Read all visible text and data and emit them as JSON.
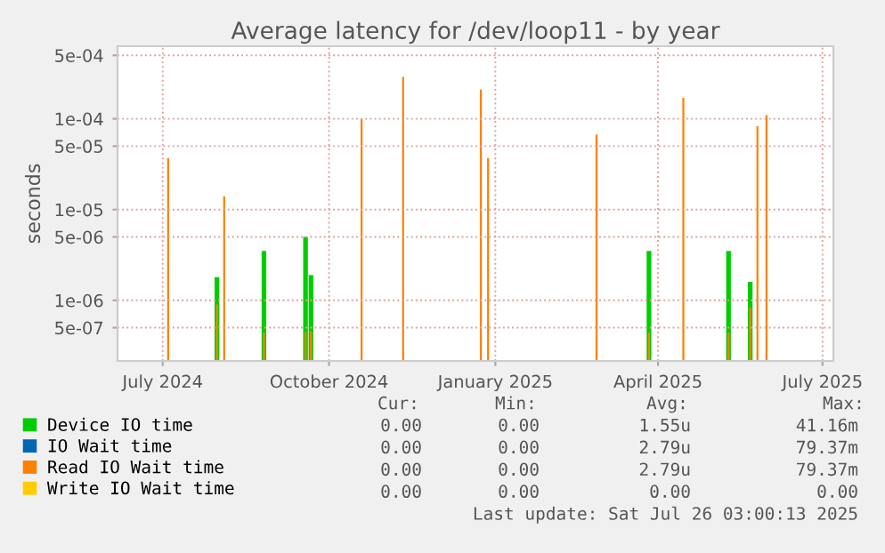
{
  "chart_data": {
    "type": "bar",
    "title": "Average latency for /dev/loop11 - by year",
    "ylabel": "seconds",
    "x": [
      "2024-07-04",
      "2024-07-31",
      "2024-08-04",
      "2024-08-26",
      "2024-09-18",
      "2024-09-21",
      "2024-10-19",
      "2024-11-11",
      "2024-12-24",
      "2024-12-28",
      "2025-02-26",
      "2025-03-27",
      "2025-04-15",
      "2025-05-10",
      "2025-05-22",
      "2025-05-26",
      "2025-05-31"
    ],
    "series": [
      {
        "name": "Device IO time",
        "color": "#00cc00",
        "values": [
          null,
          1.8e-06,
          null,
          3.5e-06,
          5e-06,
          1.9e-06,
          null,
          null,
          null,
          null,
          null,
          3.5e-06,
          null,
          3.5e-06,
          1.6e-06,
          null,
          null
        ]
      },
      {
        "name": "IO Wait time",
        "color": "#0066b3",
        "values": [
          null,
          null,
          null,
          null,
          null,
          null,
          null,
          null,
          null,
          null,
          null,
          null,
          null,
          null,
          null,
          null,
          null
        ]
      },
      {
        "name": "Read IO Wait time",
        "color": "#ff8000",
        "values": [
          3.7e-05,
          9e-07,
          1.4e-05,
          4.4e-07,
          4.5e-07,
          4.6e-07,
          0.0001,
          0.00029,
          0.00021,
          3.7e-05,
          6.7e-05,
          4.4e-07,
          0.00017,
          4.4e-07,
          8.4e-07,
          8.3e-05,
          0.00011
        ]
      },
      {
        "name": "Write IO Wait time",
        "color": "#ffcc00",
        "values": [
          null,
          null,
          null,
          null,
          null,
          null,
          null,
          null,
          null,
          null,
          null,
          null,
          null,
          null,
          null,
          null,
          null
        ]
      }
    ],
    "log": "y",
    "ylim": [
      2.15e-07,
      0.00063
    ],
    "yticks": [
      {
        "value": 5e-07,
        "label": "5e-07"
      },
      {
        "value": 1e-06,
        "label": "1e-06"
      },
      {
        "value": 5e-06,
        "label": "5e-06"
      },
      {
        "value": 1e-05,
        "label": "1e-05"
      },
      {
        "value": 5e-05,
        "label": "5e-05"
      },
      {
        "value": 0.0001,
        "label": "1e-04"
      },
      {
        "value": 0.0005,
        "label": "5e-04"
      }
    ],
    "xlim": [
      "2024-06-06",
      "2025-07-07"
    ],
    "xticks": [
      {
        "value": "2024-07-01",
        "label": "July 2024"
      },
      {
        "value": "2024-10-01",
        "label": "October 2024"
      },
      {
        "value": "2025-01-01",
        "label": "January 2025"
      },
      {
        "value": "2025-04-01",
        "label": "April 2025"
      },
      {
        "value": "2025-07-01",
        "label": "July 2025"
      }
    ],
    "grid": true,
    "legend": "bottom",
    "annotations": [
      "Cur:",
      "Min:",
      "Avg:",
      "Max:",
      "0.00",
      "0.00",
      "1.55u",
      "41.16m",
      "0.00",
      "0.00",
      "2.79u",
      "79.37m",
      "0.00",
      "0.00",
      "2.79u",
      "79.37m",
      "0.00",
      "0.00",
      "0.00",
      "0.00",
      "Last update: Sat Jul 26 03:00:13 2025"
    ]
  }
}
